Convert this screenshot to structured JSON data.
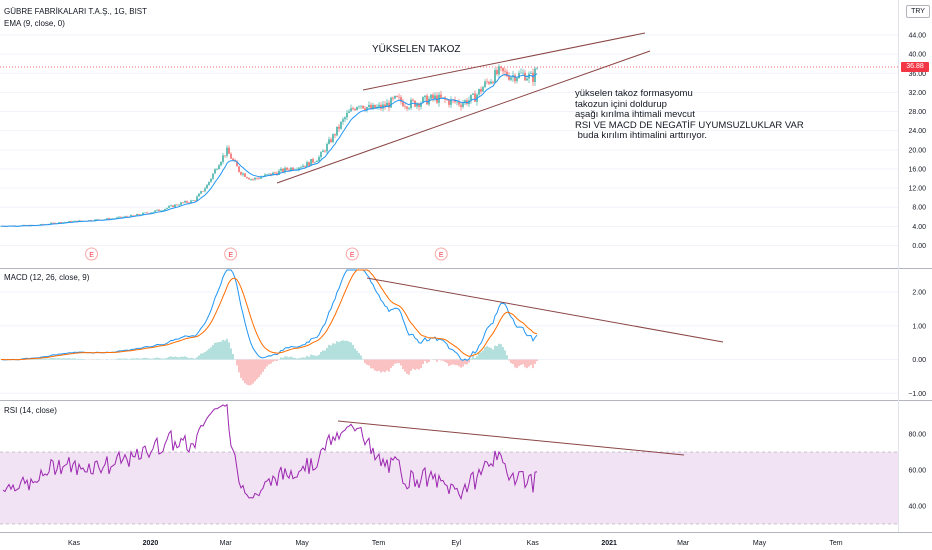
{
  "header": {
    "symbol_line": "GÜBRE FABRİKALARI T.A.Ş., 1G, BIST",
    "ema_label": "EMA (9, close, 0)",
    "currency": "TRY"
  },
  "annotations": {
    "pattern_title": "YÜKSELEN TAKOZ",
    "note_lines": [
      "yükselen takoz formasyomu",
      "takozun içini doldurup",
      "aşağı kırılma ihtimali mevcut",
      "RSI VE MACD DE NEGATİF UYUMSUZLUKLAR VAR",
      " buda kırılım ihtimalini arttırıyor."
    ],
    "earnings_marker": "E"
  },
  "chart_data": [
    {
      "type": "line",
      "pane": "price",
      "description_source": "candlestick price with EMA(9)",
      "y_ticks": [
        "44.00",
        "40.00",
        "36.00",
        "32.00",
        "28.00",
        "24.00",
        "20.00",
        "16.00",
        "12.00",
        "8.00",
        "4.00",
        "0.00"
      ],
      "ylim": [
        -2,
        46
      ],
      "last_price_label": "36.88",
      "last_price": 36.88,
      "earnings_dates": [
        "2019-11-15",
        "2020-03-05",
        "2020-06-10",
        "2020-08-20"
      ],
      "close_x": [
        "2019-10-01",
        "2019-10-20",
        "2019-11-10",
        "2019-12-01",
        "2019-12-20",
        "2020-01-10",
        "2020-01-25",
        "2020-02-05",
        "2020-02-15",
        "2020-02-25",
        "2020-03-02",
        "2020-03-12",
        "2020-03-22",
        "2020-04-05",
        "2020-04-20",
        "2020-05-05",
        "2020-05-15",
        "2020-05-25",
        "2020-06-05",
        "2020-06-15",
        "2020-06-25",
        "2020-07-05",
        "2020-07-15",
        "2020-07-25",
        "2020-08-05",
        "2020-08-15",
        "2020-08-25",
        "2020-09-05",
        "2020-09-15",
        "2020-09-25",
        "2020-10-05",
        "2020-10-15",
        "2020-10-25",
        "2020-11-01",
        "2020-11-05"
      ],
      "close_y": [
        4.2,
        4.8,
        5.2,
        5.6,
        6.3,
        7.5,
        8.8,
        9.4,
        12.5,
        17.5,
        19.8,
        15.5,
        13.8,
        14.8,
        16.0,
        17.0,
        18.5,
        22.5,
        27.0,
        29.8,
        28.5,
        29.0,
        30.5,
        29.5,
        30.2,
        30.8,
        30.2,
        29.8,
        30.8,
        34.0,
        36.2,
        35.5,
        35.8,
        35.0,
        37.5
      ]
    },
    {
      "type": "line",
      "pane": "MACD",
      "title": "MACD (12, 26, close, 9)",
      "y_ticks": [
        "2.00",
        "1.00",
        "0.00",
        "−1.00"
      ],
      "ylim": [
        -1.1,
        2.6
      ]
    },
    {
      "type": "line",
      "pane": "RSI",
      "title": "RSI (14, close)",
      "y_ticks": [
        "80.00",
        "60.00",
        "40.00"
      ],
      "ylim": [
        28,
        100
      ],
      "band": [
        30,
        70
      ]
    }
  ],
  "x_axis": {
    "tick_labels": [
      "Kas",
      "2020",
      "Mar",
      "May",
      "Tem",
      "Eyl",
      "Kas",
      "2021",
      "Mar",
      "May",
      "Tem"
    ],
    "tick_dates": [
      "2019-11-01",
      "2020-01-01",
      "2020-03-01",
      "2020-05-01",
      "2020-07-01",
      "2020-09-01",
      "2020-11-01",
      "2021-01-01",
      "2021-03-01",
      "2021-05-01",
      "2021-07-01"
    ]
  },
  "colors": {
    "up": "#26a69a",
    "down": "#ef5350",
    "ema": "#2196f3",
    "macd_line": "#2196f3",
    "signal_line": "#ff6d00",
    "rsi_line": "#9c27b0",
    "rsi_band": "#e1bee7",
    "drawing": "#8b4545",
    "price_label": "#f23645"
  }
}
